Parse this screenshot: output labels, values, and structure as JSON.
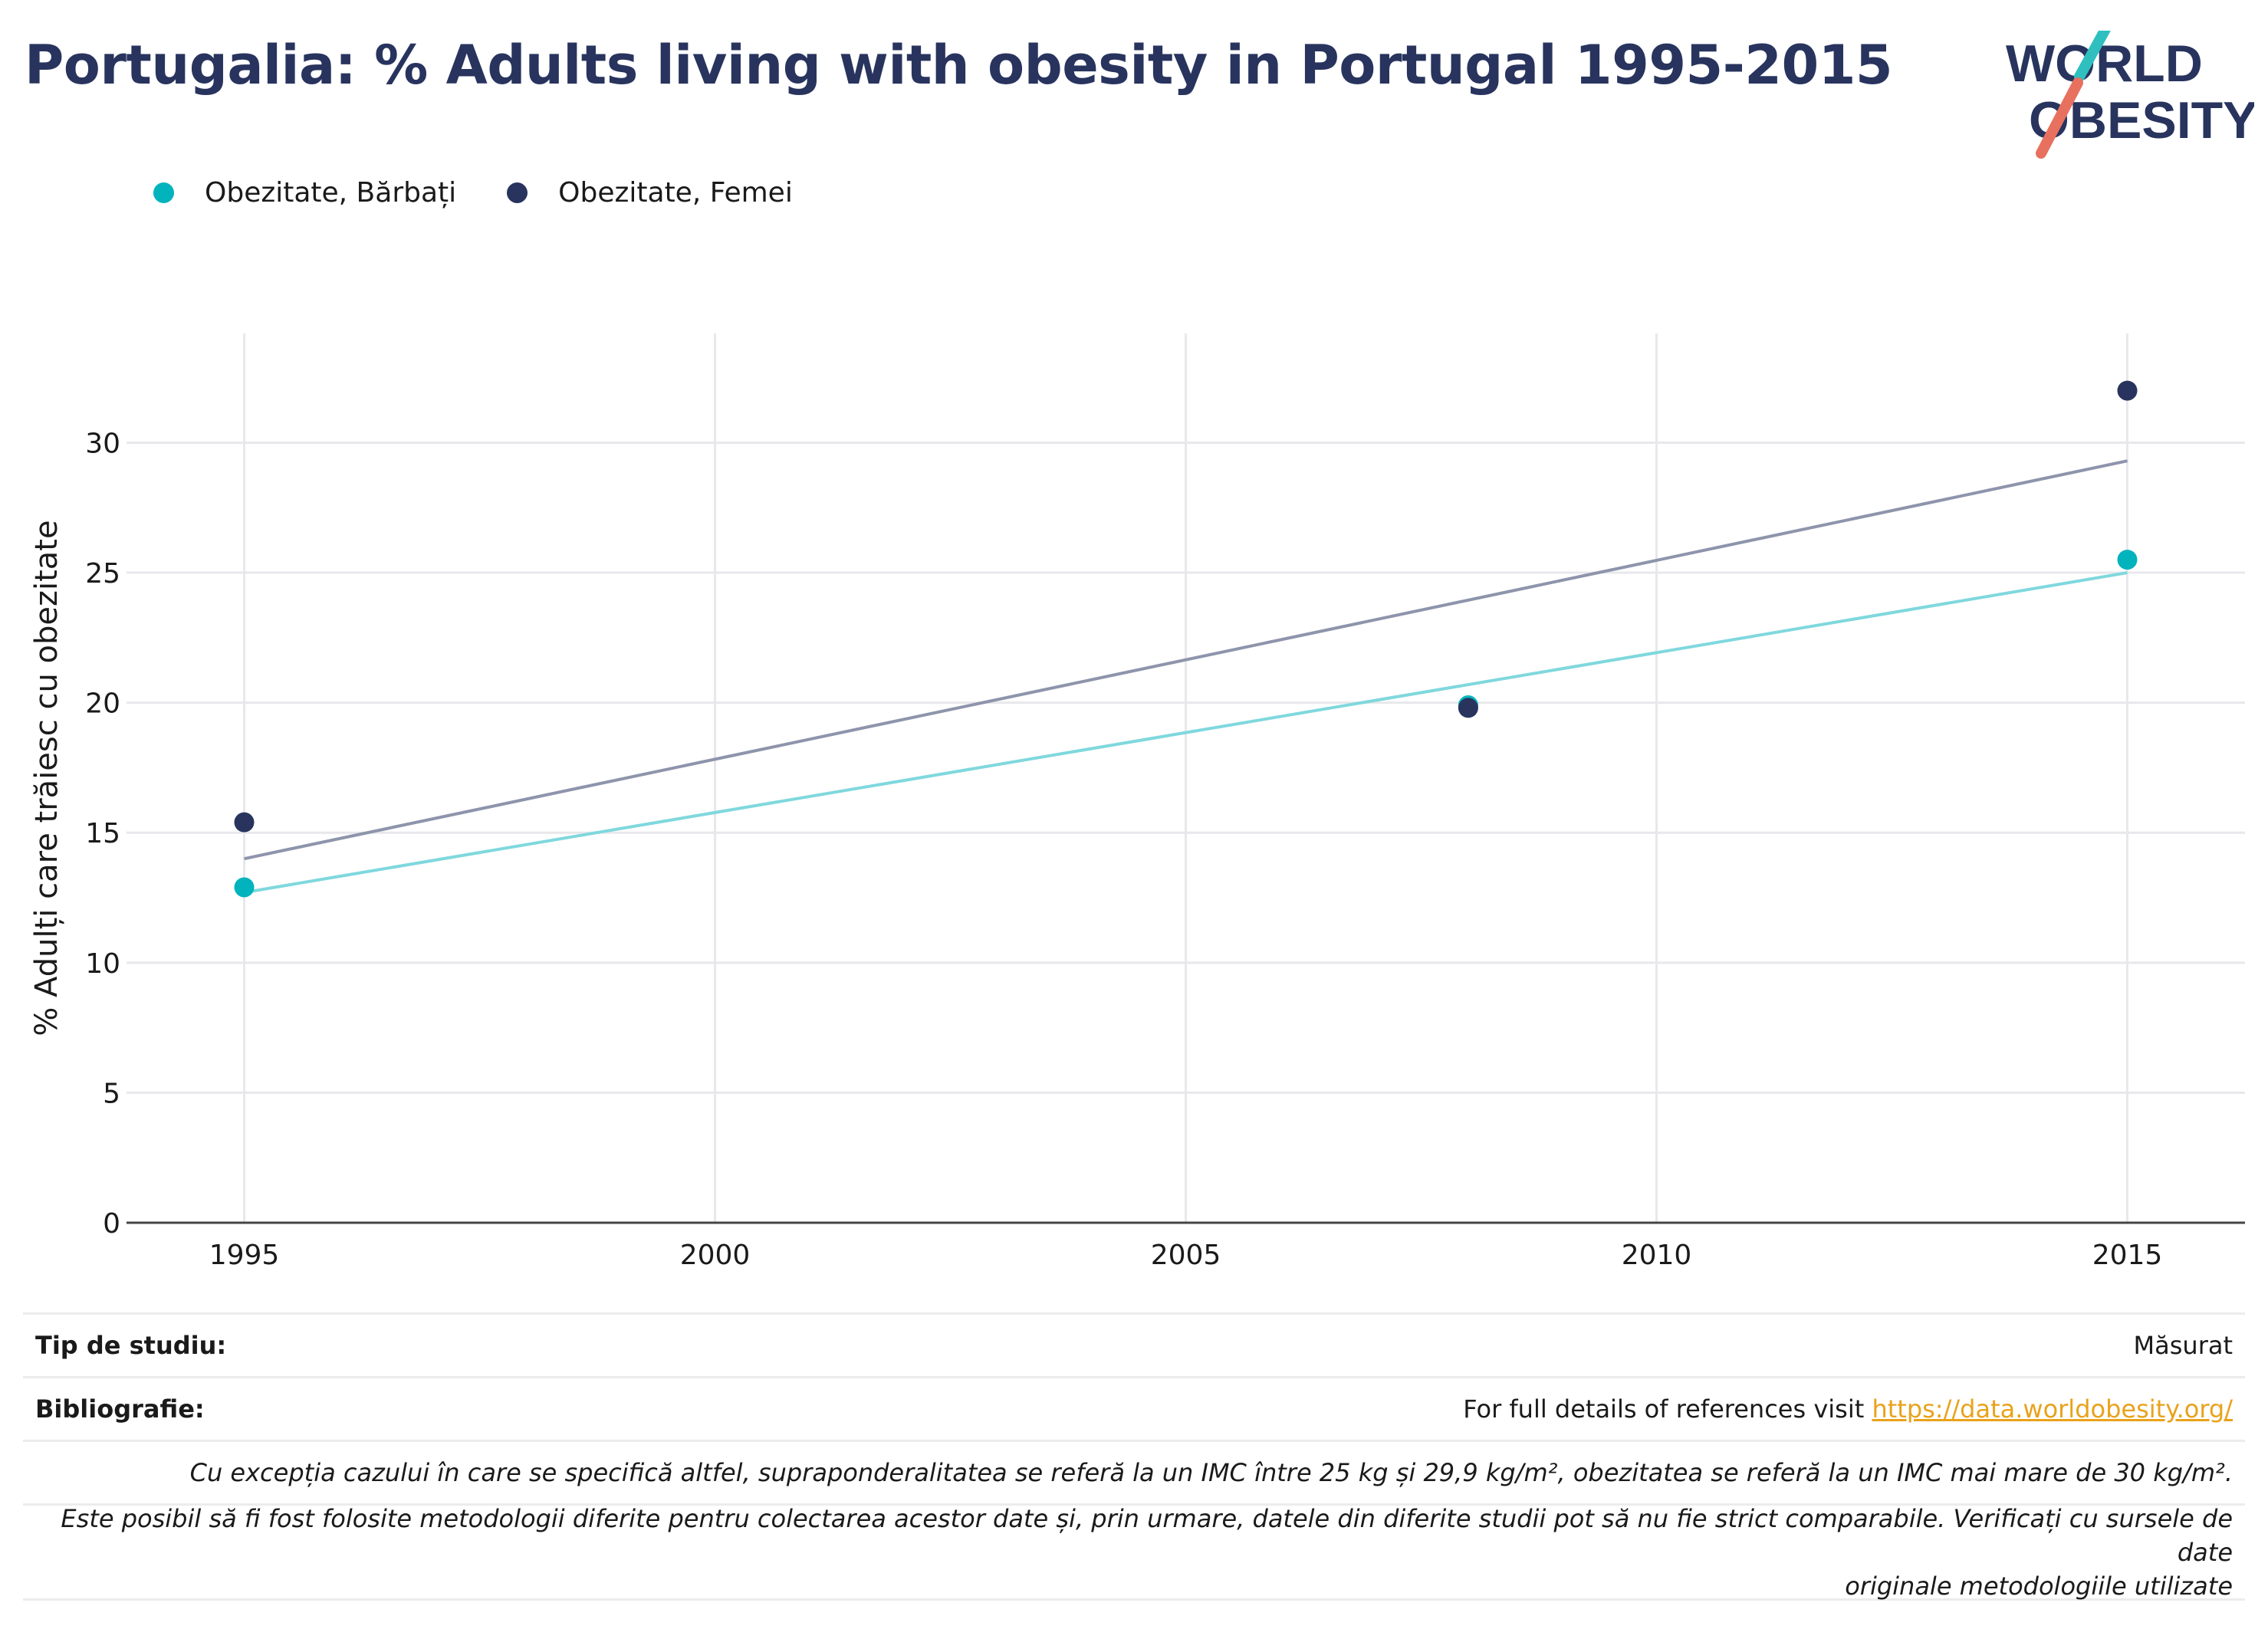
{
  "title": "Portugalia: % Adults living with obesity in Portugal 1995-2015",
  "logo": {
    "line1": "WORLD",
    "line2": "OBESITY"
  },
  "legend": [
    {
      "label": "Obezitate, Bărbați"
    },
    {
      "label": "Obezitate, Femei"
    }
  ],
  "colors": {
    "men": "#00b3bd",
    "women": "#28345e",
    "men_trend": "#7fd8dd",
    "women_trend": "#8e94ab",
    "title": "#28345e",
    "link": "#e9a21b"
  },
  "chart_data": {
    "type": "scatter",
    "title": "Portugalia: % Adults living with obesity in Portugal 1995-2015",
    "xlabel": "",
    "ylabel": "% Adulți care trăiesc cu obezitate",
    "xlim": [
      1993.75,
      2016.25
    ],
    "ylim": [
      0,
      34.2
    ],
    "x_ticks": [
      1995,
      2000,
      2005,
      2010,
      2015
    ],
    "y_ticks": [
      0,
      5,
      10,
      15,
      20,
      25,
      30
    ],
    "grid": true,
    "legend_position": "top-left",
    "series": [
      {
        "name": "Obezitate, Bărbați",
        "x": [
          1995,
          2008,
          2015
        ],
        "y": [
          12.9,
          19.9,
          25.5
        ],
        "trend": {
          "x": [
            1995,
            2015
          ],
          "y": [
            12.7,
            25.0
          ]
        }
      },
      {
        "name": "Obezitate, Femei",
        "x": [
          1995,
          2008,
          2015
        ],
        "y": [
          15.4,
          19.8,
          32.0
        ],
        "trend": {
          "x": [
            1995,
            2015
          ],
          "y": [
            14.0,
            29.3
          ]
        }
      }
    ]
  },
  "notes": {
    "study_type_label": "Tip de studiu:",
    "study_type_value": "Măsurat",
    "bibliography_label": "Bibliografie:",
    "bibliography_text": "For full details of references visit ",
    "bibliography_link": "https://data.worldobesity.org/",
    "note1": "Cu excepția cazului în care se specifică altfel, supraponderalitatea se referă la un IMC între 25 kg și 29,9 kg/m², obezitatea se referă la un IMC mai mare de 30 kg/m².",
    "note2_line1": "Este posibil să fi fost folosite metodologii diferite pentru colectarea acestor date și, prin urmare, datele din diferite studii pot să nu fie strict comparabile. Verificați cu sursele de date",
    "note2_line2": "originale metodologiile utilizate"
  }
}
